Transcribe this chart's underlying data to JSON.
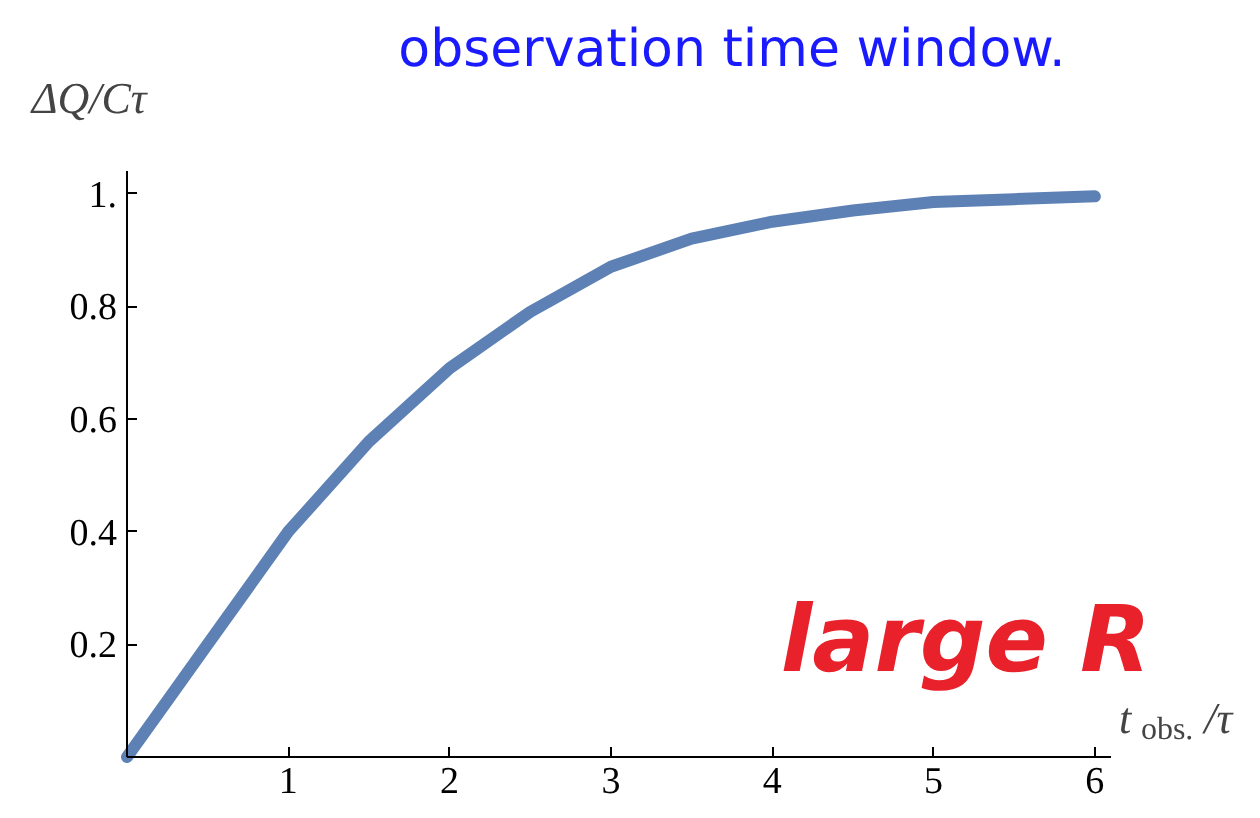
{
  "chart_data": {
    "type": "line",
    "title": "observation time window.",
    "xlabel": "t$_{obs.}$/τ",
    "ylabel": "ΔQ/Cτ",
    "annotations": [
      "large R"
    ],
    "x": [
      0,
      0.25,
      0.5,
      0.75,
      1,
      1.5,
      2,
      2.5,
      3,
      3.5,
      4,
      4.5,
      5,
      5.5,
      6
    ],
    "series": [
      {
        "color": "#5e81b5",
        "values": [
          0,
          0.1,
          0.2,
          0.3,
          0.4,
          0.56,
          0.69,
          0.79,
          0.87,
          0.92,
          0.95,
          0.97,
          0.985,
          0.99,
          0.995
        ]
      }
    ],
    "xlim": [
      0,
      6.1
    ],
    "ylim": [
      0,
      1.04
    ],
    "xticks": [
      {
        "value": 0,
        "label": null
      },
      1,
      2,
      3,
      4,
      5,
      6
    ],
    "yticks": [
      {
        "value": 0,
        "label": null
      },
      0.2,
      0.4,
      0.6,
      0.8,
      {
        "value": 1,
        "label": "1."
      }
    ],
    "grid": false
  }
}
